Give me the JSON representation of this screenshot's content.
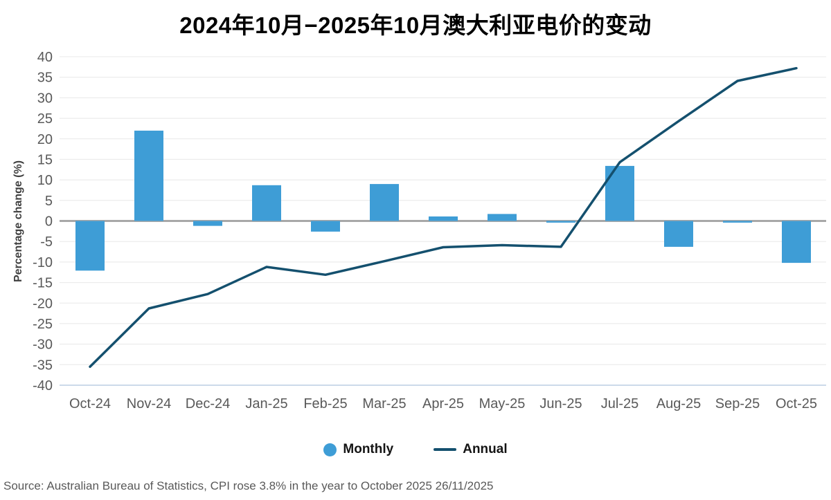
{
  "chart_data": {
    "type": "combo",
    "title": "2024年10月−2025年10月澳大利亚电价的变动",
    "categories": [
      "Oct-24",
      "Nov-24",
      "Dec-24",
      "Jan-25",
      "Feb-25",
      "Mar-25",
      "Apr-25",
      "May-25",
      "Jun-25",
      "Jul-25",
      "Aug-25",
      "Sep-25",
      "Oct-25"
    ],
    "series": [
      {
        "name": "Monthly",
        "type": "bar",
        "color": "#3E9DD6",
        "values": [
          -12.1,
          22.0,
          -1.2,
          8.7,
          -2.6,
          9.0,
          1.1,
          1.7,
          -0.4,
          13.4,
          -6.3,
          -0.4,
          -10.2
        ]
      },
      {
        "name": "Annual",
        "type": "line",
        "color": "#14506E",
        "values": [
          -35.5,
          -21.3,
          -17.8,
          -11.2,
          -13.1,
          -9.8,
          -6.4,
          -5.9,
          -6.3,
          14.3,
          24.3,
          34.1,
          37.2
        ]
      }
    ],
    "xlabel": "",
    "ylabel": "Percentage change (%)",
    "ylim": [
      -40,
      40
    ],
    "ytick_step": 5,
    "grid": true,
    "legend_position": "bottom",
    "colors": {
      "gridline": "#e8e8e8",
      "zero_line": "#a8a8a8",
      "baseline_axis": "#ccd9ea",
      "tick_label": "#595959",
      "axis_title": "#3f3f3f"
    }
  },
  "footer": {
    "source": "Source: Australian Bureau of Statistics, CPI rose 3.8% in the year to October 2025 26/11/2025"
  }
}
